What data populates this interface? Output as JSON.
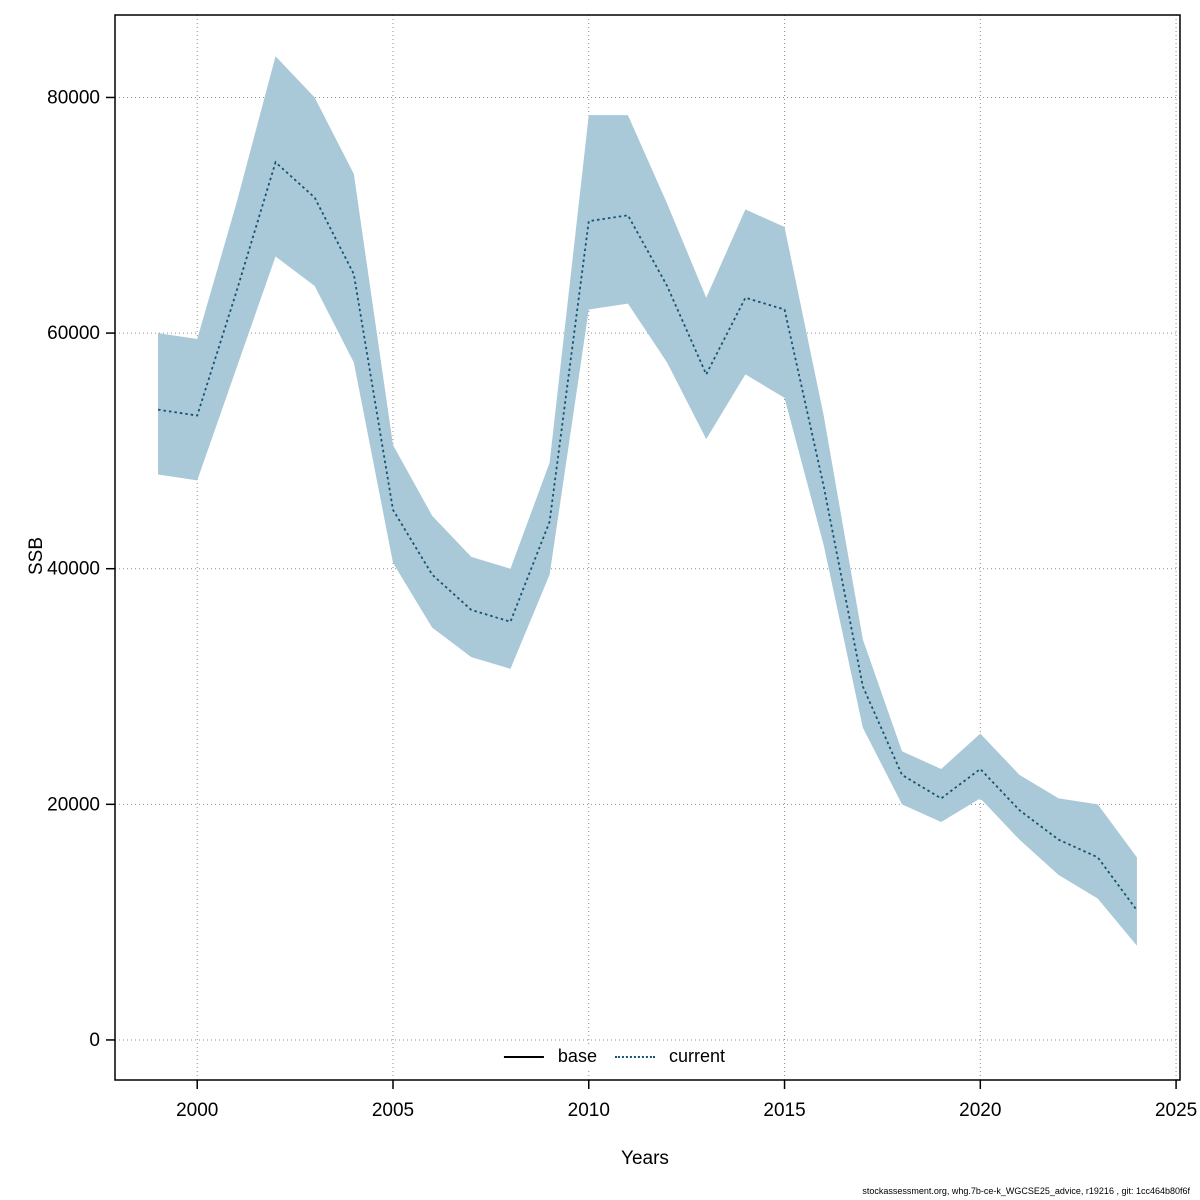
{
  "axes": {
    "x_label": "Years",
    "y_label": "SSB"
  },
  "footer": {
    "text": "stockassessment.org, whg.7b-ce-k_WGCSE25_advice, r19216 , git: 1cc464b80f6f"
  },
  "chart_data": {
    "type": "line",
    "title": "",
    "xlabel": "Years",
    "ylabel": "SSB",
    "x": [
      1999,
      2000,
      2001,
      2002,
      2003,
      2004,
      2005,
      2006,
      2007,
      2008,
      2009,
      2010,
      2011,
      2012,
      2013,
      2014,
      2015,
      2016,
      2017,
      2018,
      2019,
      2020,
      2021,
      2022,
      2023,
      2024
    ],
    "series": [
      {
        "name": "current",
        "style": "dotted",
        "color": "#16536f",
        "values": [
          53500,
          53000,
          63500,
          74500,
          71500,
          65000,
          45000,
          39500,
          36500,
          35500,
          44000,
          69500,
          70000,
          64000,
          56500,
          63000,
          62000,
          47000,
          30000,
          22500,
          20500,
          23000,
          19500,
          17000,
          15500,
          11000
        ]
      }
    ],
    "ribbon": {
      "fill": "#a9c9d9",
      "lower": [
        48000,
        47500,
        57000,
        66500,
        64000,
        57500,
        40500,
        35000,
        32500,
        31500,
        39500,
        62000,
        62500,
        57500,
        51000,
        56500,
        54500,
        42000,
        26500,
        20000,
        18500,
        20500,
        17000,
        14000,
        12000,
        8000
      ],
      "upper": [
        60000,
        59500,
        71000,
        83500,
        80000,
        73500,
        50500,
        44500,
        41000,
        40000,
        49000,
        78500,
        78500,
        71000,
        63000,
        70500,
        69000,
        53000,
        34000,
        24500,
        23000,
        26000,
        22500,
        20500,
        20000,
        15500
      ]
    },
    "x_ticks": [
      2000,
      2005,
      2010,
      2015,
      2020,
      2025
    ],
    "y_ticks": [
      0,
      20000,
      40000,
      60000,
      80000
    ],
    "xlim": [
      1997.9,
      2025.1
    ],
    "ylim": [
      -3400,
      87000
    ],
    "grid": true,
    "grid_color": "#8f8f8f",
    "legend_position": "bottom-center-inside",
    "legend": [
      {
        "label": "base",
        "style": "solid",
        "color": "#000000"
      },
      {
        "label": "current",
        "style": "dotted",
        "color": "#16536f"
      }
    ]
  }
}
